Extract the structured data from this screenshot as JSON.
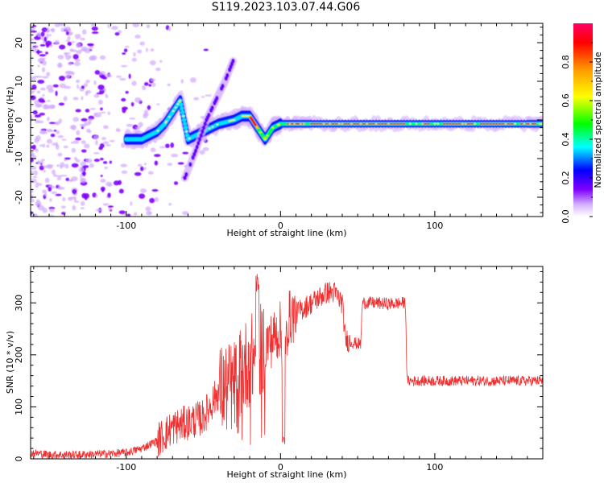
{
  "title": "S119.2023.103.07.44.G06",
  "chart_data": [
    {
      "type": "heatmap",
      "xlabel": "Height of straight line (km)",
      "ylabel": "Frequency (Hz)",
      "xlim": [
        -162,
        170
      ],
      "ylim": [
        -25,
        25
      ],
      "xticks": [
        -100,
        0,
        100
      ],
      "yticks": [
        -20,
        -10,
        0,
        10,
        20
      ],
      "colorbar": {
        "label": "Normalized spectral amplitude",
        "range": [
          0.0,
          1.0
        ],
        "ticks": [
          0.0,
          0.2,
          0.4,
          0.6,
          0.8
        ],
        "tick_labels": [
          "0.0",
          "0.2",
          "0.4",
          "0.6",
          "0.8"
        ],
        "colors": [
          "#ffffff",
          "#cc99ff",
          "#7f00ff",
          "#0000ff",
          "#00ffff",
          "#00ff00",
          "#ffff00",
          "#ff9900",
          "#ff0000",
          "#ff0066"
        ]
      },
      "ridge": {
        "x": [
          -100,
          -90,
          -80,
          -75,
          -70,
          -65,
          -60,
          -50,
          -40,
          -30,
          -25,
          -20,
          -15,
          -10,
          -5,
          0,
          10,
          20,
          40,
          60,
          80,
          100,
          120,
          140,
          160,
          170
        ],
        "y": [
          -5,
          -5,
          -3,
          -1,
          2,
          5,
          -5,
          -3,
          -1,
          0,
          1,
          1,
          -2,
          -5,
          -2,
          -1,
          -1,
          -1,
          -1,
          -1,
          -1,
          -1,
          -1,
          -1,
          -1,
          -1
        ]
      },
      "side_branch": {
        "x": [
          -62,
          -55,
          -48,
          -42,
          -36,
          -30
        ],
        "y": [
          -15,
          -8,
          0,
          5,
          10,
          16
        ]
      },
      "noise_region_x": [
        -162,
        -80
      ]
    },
    {
      "type": "line",
      "xlabel": "Height of straight line (km)",
      "ylabel": "SNR (10 * v/v)",
      "xlim": [
        -162,
        170
      ],
      "ylim": [
        0,
        370
      ],
      "xticks": [
        -100,
        0,
        100
      ],
      "yticks": [
        0,
        100,
        200,
        300
      ],
      "color": "#f03030",
      "x": [
        -162,
        -150,
        -130,
        -110,
        -100,
        -90,
        -80,
        -70,
        -60,
        -50,
        -40,
        -30,
        -25,
        -20,
        -15,
        -10,
        -5,
        0,
        2,
        5,
        10,
        20,
        30,
        35,
        40,
        42,
        45,
        52,
        53,
        60,
        70,
        80,
        81,
        82,
        90,
        110,
        130,
        150,
        170
      ],
      "y": [
        12,
        8,
        8,
        10,
        12,
        20,
        35,
        60,
        70,
        80,
        130,
        140,
        170,
        190,
        200,
        220,
        230,
        250,
        150,
        270,
        280,
        300,
        320,
        320,
        300,
        230,
        225,
        220,
        300,
        300,
        298,
        300,
        300,
        150,
        150,
        150,
        150,
        150,
        150
      ]
    }
  ]
}
